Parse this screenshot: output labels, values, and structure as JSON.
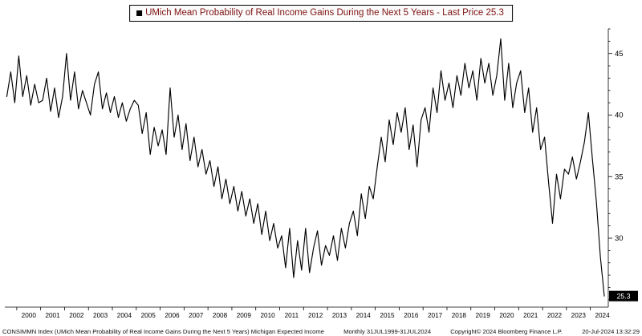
{
  "title": {
    "text": "UMich Mean Probability of Real Income Gains During the Next 5 Years - Last Price 25.3",
    "legend_marker": "filled-black-square"
  },
  "footer": {
    "security_text": "CONSIMMN Index (UMich Mean Probability of Real Income Gains During the Next 5 Years) Michigan Expected Income",
    "periodicity": "Monthly 31JUL1999-31JUL2024",
    "copyright": "Copyright© 2024 Bloomberg Finance L.P.",
    "timestamp": "20-Jul-2024 13:32:29"
  },
  "chart_data": {
    "type": "line",
    "title": "UMich Mean Probability of Real Income Gains During the Next 5 Years",
    "series_name": "CONSIMMN Index",
    "last_price": 25.3,
    "line_color": "#000000",
    "badge_bg": "#000000",
    "badge_fg": "#ffffff",
    "x_start": 1999.583,
    "x_step_years": 0.16667,
    "x_domain": [
      1999.5,
      2024.75
    ],
    "y_domain": [
      24.4,
      47.0
    ],
    "ylim": [
      25,
      46
    ],
    "y_ticks_major": [
      30,
      35,
      40,
      45
    ],
    "y_minor_step": 1,
    "grid": false,
    "legend_position": "top",
    "x_tick_years": [
      2000,
      2001,
      2002,
      2003,
      2004,
      2005,
      2006,
      2007,
      2008,
      2009,
      2010,
      2011,
      2012,
      2013,
      2014,
      2015,
      2016,
      2017,
      2018,
      2019,
      2020,
      2021,
      2022,
      2023,
      2024
    ],
    "x_tick_labels": [
      "2000",
      "2001",
      "2002",
      "2003",
      "2004",
      "2005",
      "2006",
      "2007",
      "2008",
      "2009",
      "2010",
      "2011",
      "2012",
      "2013",
      "2014",
      "2015",
      "2016",
      "2017",
      "2018",
      "2019",
      "2020",
      "2021",
      "2022",
      "2023",
      "2024"
    ],
    "values": [
      41.5,
      43.5,
      41.0,
      44.8,
      41.5,
      43.2,
      40.8,
      42.5,
      41.0,
      41.2,
      43.0,
      40.3,
      42.2,
      39.8,
      41.5,
      45.0,
      41.2,
      43.5,
      40.5,
      42.0,
      41.0,
      40.0,
      42.5,
      43.5,
      40.5,
      41.8,
      40.2,
      41.5,
      39.8,
      41.0,
      39.5,
      40.5,
      41.2,
      40.8,
      38.5,
      40.2,
      36.8,
      39.0,
      37.5,
      38.8,
      36.8,
      42.2,
      38.2,
      40.0,
      37.2,
      39.3,
      36.3,
      38.2,
      35.8,
      37.2,
      35.2,
      36.3,
      34.2,
      35.8,
      33.2,
      34.8,
      32.8,
      34.2,
      32.2,
      33.8,
      31.8,
      33.2,
      31.2,
      32.8,
      30.3,
      32.2,
      29.8,
      31.2,
      29.2,
      30.2,
      27.6,
      30.8,
      26.8,
      29.8,
      27.4,
      30.8,
      27.2,
      29.2,
      30.6,
      27.8,
      29.4,
      28.6,
      30.2,
      28.2,
      30.8,
      29.2,
      31.2,
      32.2,
      30.2,
      33.6,
      31.6,
      34.2,
      33.2,
      35.8,
      38.2,
      36.2,
      39.6,
      37.6,
      40.2,
      38.6,
      40.6,
      37.2,
      39.2,
      35.8,
      39.6,
      40.6,
      38.6,
      42.2,
      40.2,
      43.6,
      41.2,
      42.6,
      40.6,
      43.2,
      41.6,
      44.2,
      42.2,
      43.6,
      41.2,
      44.6,
      42.6,
      44.2,
      41.6,
      43.2,
      46.2,
      41.2,
      44.2,
      40.6,
      42.6,
      43.6,
      40.2,
      42.2,
      38.6,
      40.6,
      37.2,
      38.2,
      34.6,
      31.2,
      35.2,
      33.2,
      35.6,
      35.2,
      36.6,
      34.8,
      36.2,
      37.8,
      40.2,
      36.5,
      33.0,
      28.5,
      25.3
    ]
  }
}
